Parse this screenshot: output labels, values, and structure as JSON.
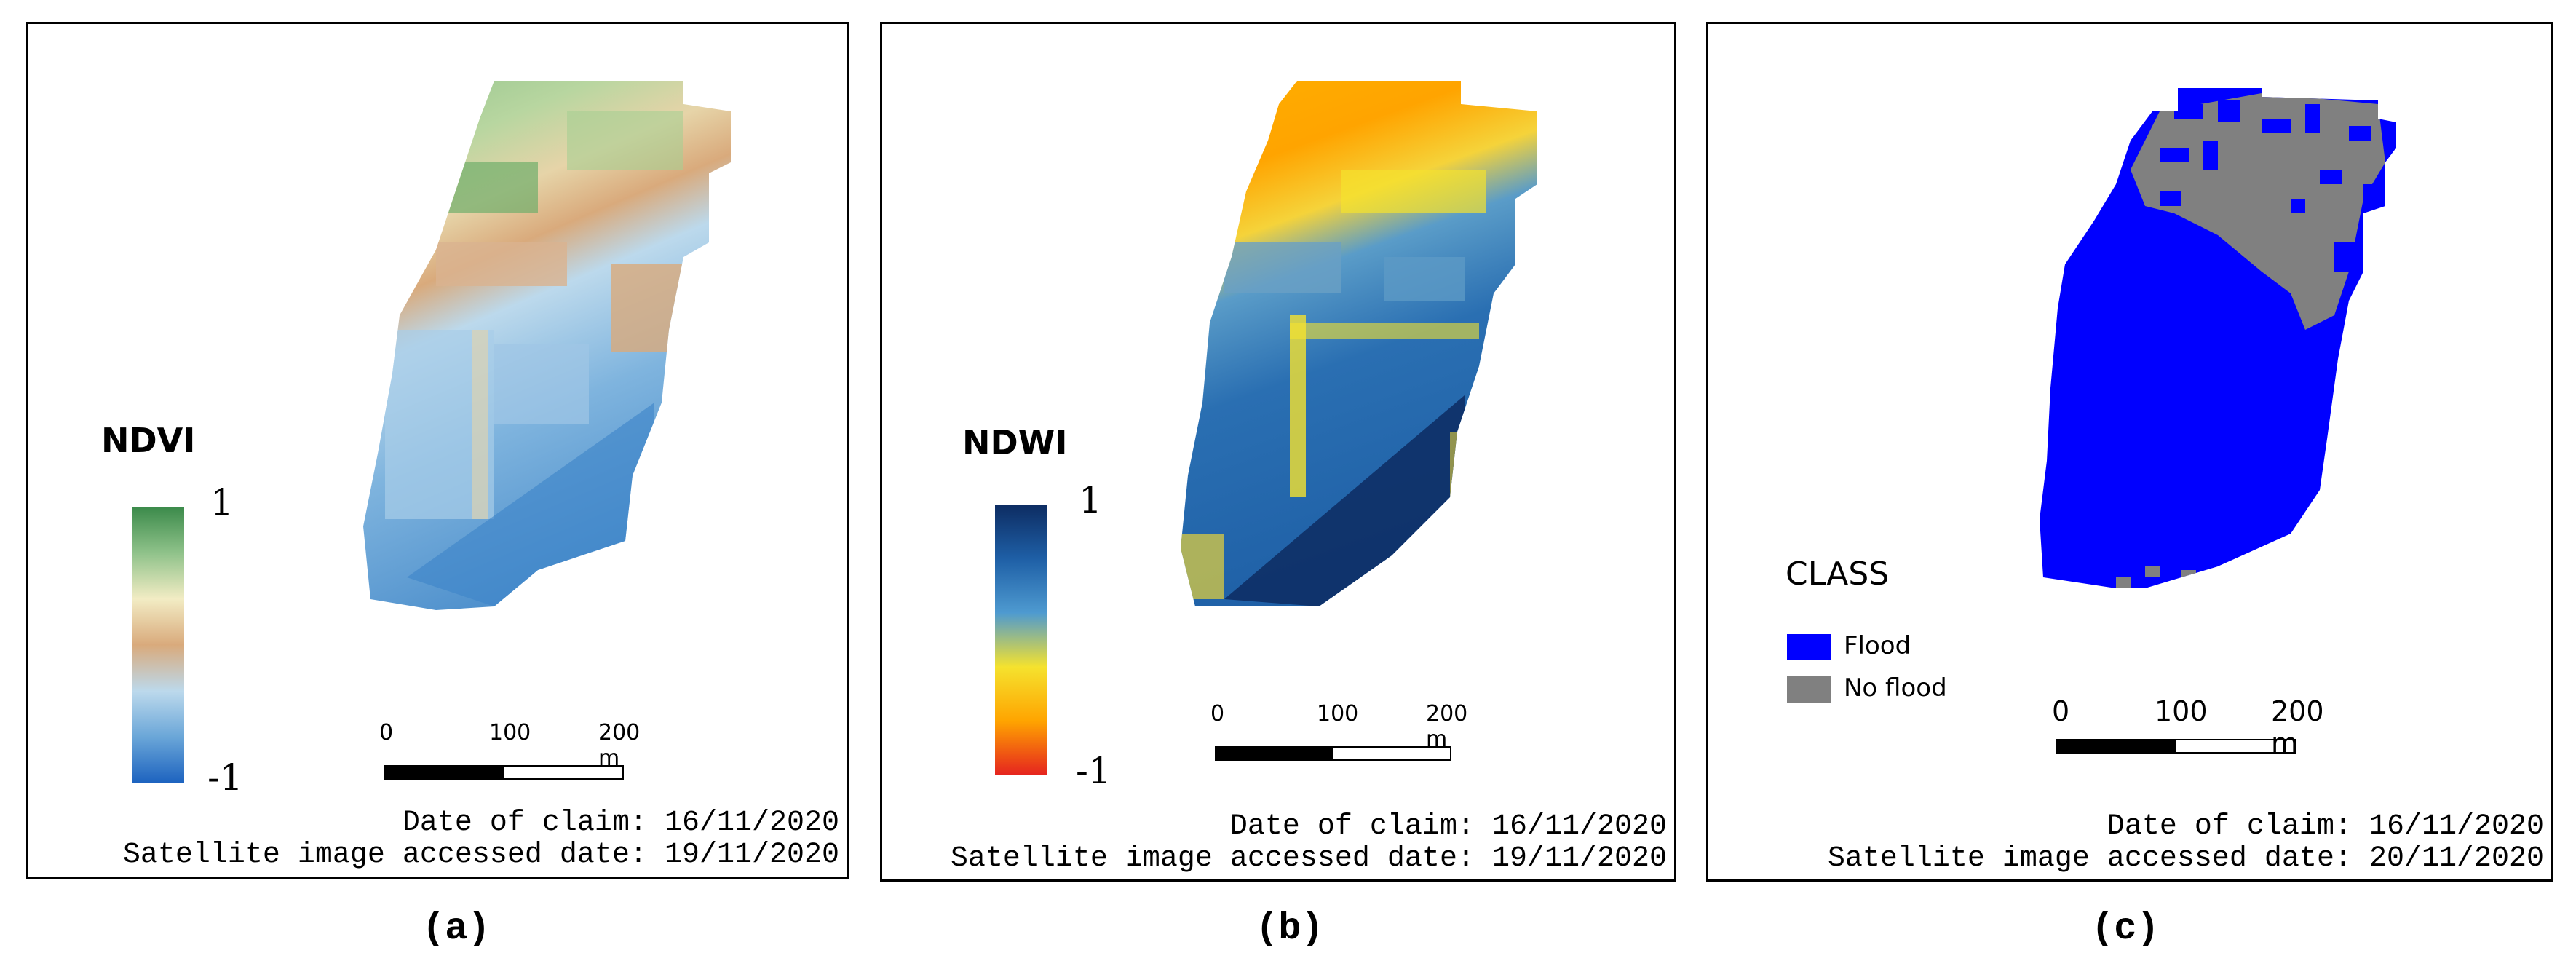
{
  "panels": [
    {
      "id": "a",
      "legend_title": "NDVI",
      "ramp_max_label": "1",
      "ramp_min_label": "-1",
      "ramp_colors": [
        "#3b8a4a",
        "#8fc28a",
        "#f2ecc4",
        "#d9aa7c",
        "#bcd9ec",
        "#6aa6d8",
        "#1c62bf"
      ],
      "scale_ticks": [
        "0",
        "100",
        "200 m"
      ],
      "date_of_claim": "Date of claim: 16/11/2020",
      "accessed_date": "Satellite image accessed date: 19/11/2020",
      "caption": "(a)"
    },
    {
      "id": "b",
      "legend_title": "NDWI",
      "ramp_max_label": "1",
      "ramp_min_label": "-1",
      "ramp_colors": [
        "#0d2c62",
        "#1e5fa6",
        "#4e9ad0",
        "#f5e22e",
        "#ffa400",
        "#e5231f"
      ],
      "scale_ticks": [
        "0",
        "100",
        "200 m"
      ],
      "date_of_claim": "Date of claim: 16/11/2020",
      "accessed_date": "Satellite image accessed date: 19/11/2020",
      "caption": "(b)"
    },
    {
      "id": "c",
      "legend_title": "CLASS",
      "classes": [
        {
          "label": "Flood",
          "color": "#0000ff"
        },
        {
          "label": "No flood",
          "color": "#808080"
        }
      ],
      "scale_ticks": [
        "0",
        "100",
        "200 m"
      ],
      "date_of_claim": "Date of claim: 16/11/2020",
      "accessed_date": "Satellite image accessed date: 20/11/2020",
      "caption": "(c)"
    }
  ]
}
